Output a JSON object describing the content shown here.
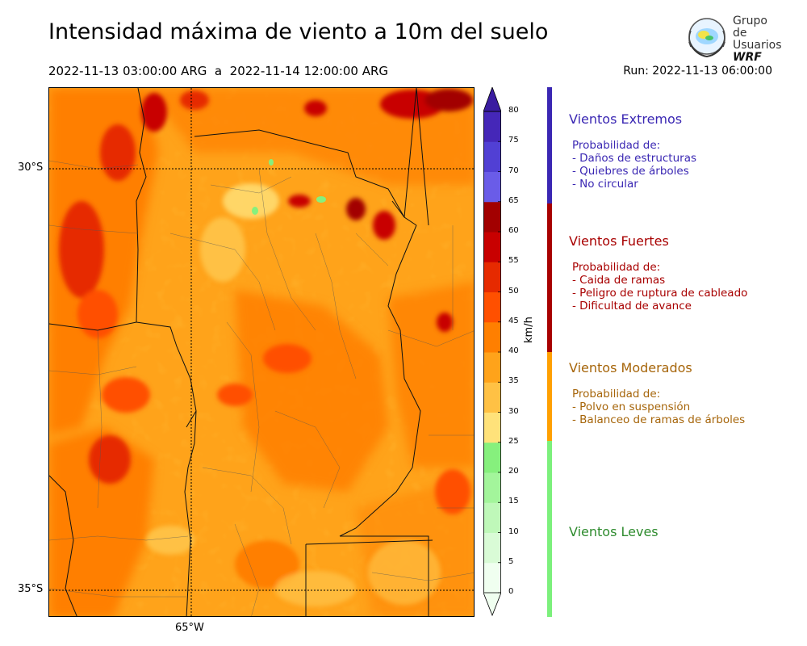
{
  "header": {
    "title": "Intensidad máxima de viento a 10m del suelo",
    "period": "2022-11-13 03:00:00 ARG  a  2022-11-14 12:00:00 ARG",
    "run": "Run: 2022-11-13 06:00:00"
  },
  "logo": {
    "line1": "Grupo de",
    "line2": "Usuarios",
    "line3": "WRF"
  },
  "map": {
    "lat_labels": [
      "30°S",
      "35°S"
    ],
    "lon_labels": [
      "65°W"
    ],
    "field": "wind-speed-max-10m",
    "region": "centro de Argentina"
  },
  "colorbar": {
    "unit": "km/h",
    "ticks": [
      "0",
      "5",
      "10",
      "15",
      "20",
      "25",
      "30",
      "35",
      "40",
      "45",
      "50",
      "55",
      "60",
      "65",
      "70",
      "75",
      "80"
    ],
    "colors": [
      "#f0fff0",
      "#d9fbd6",
      "#bff8b9",
      "#a3f59b",
      "#86f07d",
      "#ffe27a",
      "#ffc144",
      "#ffa31a",
      "#ff7f00",
      "#ff5000",
      "#e62a00",
      "#c80000",
      "#a20000",
      "#6a5ce8",
      "#5140d4",
      "#4527b8",
      "#3a1ca0"
    ]
  },
  "categories": [
    {
      "title": "Vientos Extremos",
      "color": "#3a27b3",
      "lines": [
        "Probabilidad de:",
        "- Daños de estructuras",
        "- Quiebres de árboles",
        "- No circular"
      ]
    },
    {
      "title": "Vientos Fuertes",
      "color": "#a80000",
      "lines": [
        "Probabilidad de:",
        "- Caida de ramas",
        "- Peligro de ruptura de cableado",
        "- Dificultad de avance"
      ]
    },
    {
      "title": "Vientos Moderados",
      "color": "#a6650a",
      "lines": [
        "Probabilidad de:",
        "- Polvo en suspensión",
        "- Balanceo de ramas de árboles"
      ]
    },
    {
      "title": "Vientos Leves",
      "color": "#2e8b2e",
      "lines": []
    }
  ],
  "category_bar_colors": [
    "#3a27b3",
    "#a80000",
    "#ffa000",
    "#7cf07c"
  ]
}
